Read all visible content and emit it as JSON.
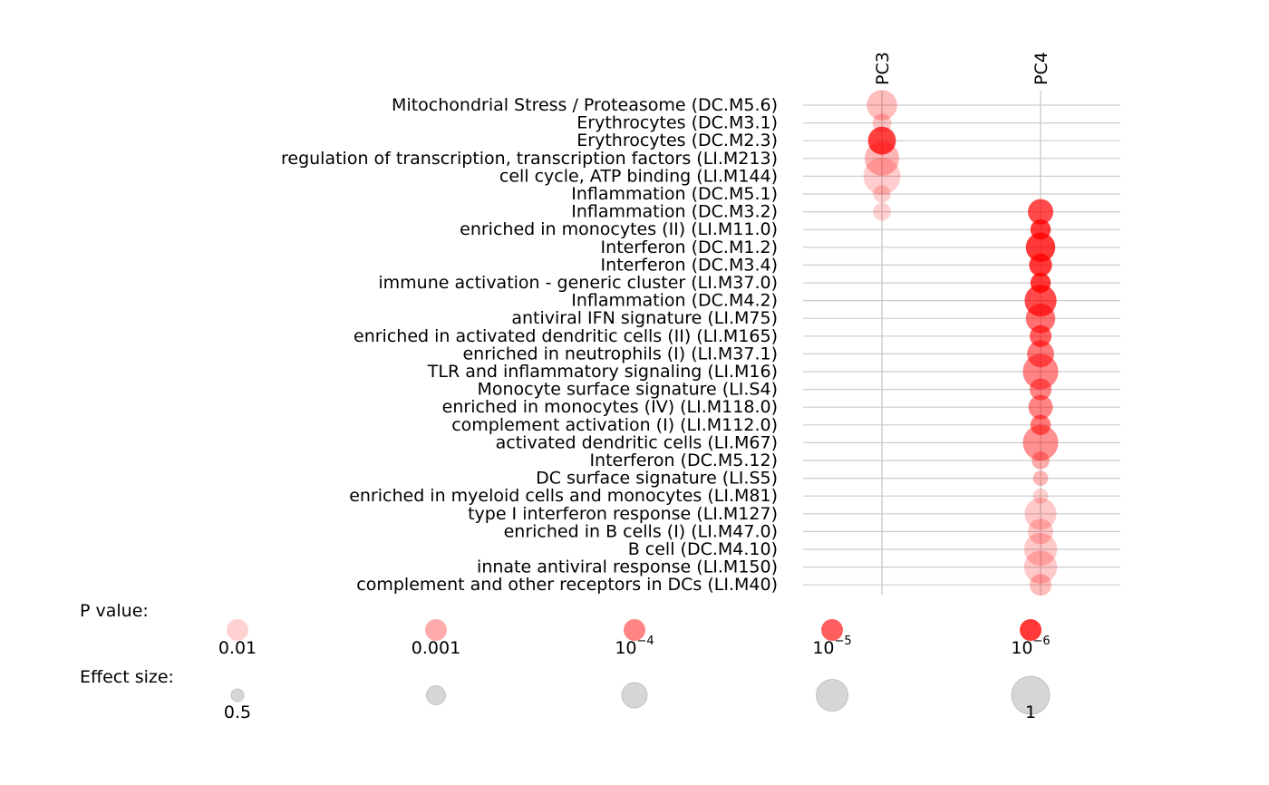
{
  "chart_data": {
    "type": "bubble",
    "columns": [
      "PC3",
      "PC4"
    ],
    "rows": [
      "Mitochondrial Stress / Proteasome (DC.M5.6)",
      "Erythrocytes (DC.M3.1)",
      "Erythrocytes (DC.M2.3)",
      "regulation of transcription, transcription factors (LI.M213)",
      "cell cycle, ATP binding (LI.M144)",
      "Inflammation (DC.M5.1)",
      "Inflammation (DC.M3.2)",
      "enriched in monocytes (II) (LI.M11.0)",
      "Interferon (DC.M1.2)",
      "Interferon (DC.M3.4)",
      "immune activation - generic cluster (LI.M37.0)",
      "Inflammation (DC.M4.2)",
      "antiviral IFN signature (LI.M75)",
      "enriched in activated dendritic cells (II) (LI.M165)",
      "enriched in neutrophils (I) (LI.M37.1)",
      "TLR and inflammatory signaling (LI.M16)",
      "Monocyte surface signature (LI.S4)",
      "enriched in monocytes (IV) (LI.M118.0)",
      "complement activation (I) (LI.M112.0)",
      "activated dendritic cells (LI.M67)",
      "Interferon (DC.M5.12)",
      "DC surface signature (LI.S5)",
      "enriched in myeloid cells and monocytes (LI.M81)",
      "type I interferon response (LI.M127)",
      "enriched in B cells (I) (LI.M47.0)",
      "B cell (DC.M4.10)",
      "innate antiviral response (LI.M150)",
      "complement and other receptors in DCs (LI.M40)"
    ],
    "points": [
      {
        "row": 0,
        "col": 0,
        "effect": 0.85,
        "log10p": -2.5
      },
      {
        "row": 1,
        "col": 0,
        "effect": 0.62,
        "log10p": -2.3
      },
      {
        "row": 2,
        "col": 0,
        "effect": 0.8,
        "log10p": -5.8
      },
      {
        "row": 3,
        "col": 0,
        "effect": 0.93,
        "log10p": -2.7
      },
      {
        "row": 4,
        "col": 0,
        "effect": 0.98,
        "log10p": -2.1
      },
      {
        "row": 5,
        "col": 0,
        "effect": 0.6,
        "log10p": -2.0
      },
      {
        "row": 6,
        "col": 0,
        "effect": 0.6,
        "log10p": -2.0
      },
      {
        "row": 6,
        "col": 1,
        "effect": 0.75,
        "log10p": -5.5
      },
      {
        "row": 7,
        "col": 1,
        "effect": 0.65,
        "log10p": -6.0
      },
      {
        "row": 8,
        "col": 1,
        "effect": 0.83,
        "log10p": -6.0
      },
      {
        "row": 9,
        "col": 1,
        "effect": 0.7,
        "log10p": -6.0
      },
      {
        "row": 10,
        "col": 1,
        "effect": 0.65,
        "log10p": -6.0
      },
      {
        "row": 11,
        "col": 1,
        "effect": 0.88,
        "log10p": -5.5
      },
      {
        "row": 12,
        "col": 1,
        "effect": 0.83,
        "log10p": -4.5
      },
      {
        "row": 13,
        "col": 1,
        "effect": 0.68,
        "log10p": -5.0
      },
      {
        "row": 14,
        "col": 1,
        "effect": 0.78,
        "log10p": -4.3
      },
      {
        "row": 15,
        "col": 1,
        "effect": 0.95,
        "log10p": -4.0
      },
      {
        "row": 16,
        "col": 1,
        "effect": 0.68,
        "log10p": -4.0
      },
      {
        "row": 17,
        "col": 1,
        "effect": 0.73,
        "log10p": -4.0
      },
      {
        "row": 18,
        "col": 1,
        "effect": 0.65,
        "log10p": -4.3
      },
      {
        "row": 19,
        "col": 1,
        "effect": 0.95,
        "log10p": -3.7
      },
      {
        "row": 20,
        "col": 1,
        "effect": 0.6,
        "log10p": -3.0
      },
      {
        "row": 21,
        "col": 1,
        "effect": 0.55,
        "log10p": -2.7
      },
      {
        "row": 22,
        "col": 1,
        "effect": 0.55,
        "log10p": -2.0
      },
      {
        "row": 23,
        "col": 1,
        "effect": 0.88,
        "log10p": -2.2
      },
      {
        "row": 24,
        "col": 1,
        "effect": 0.75,
        "log10p": -2.2
      },
      {
        "row": 25,
        "col": 1,
        "effect": 0.9,
        "log10p": -2.2
      },
      {
        "row": 26,
        "col": 1,
        "effect": 0.9,
        "log10p": -2.2
      },
      {
        "row": 27,
        "col": 1,
        "effect": 0.68,
        "log10p": -2.5
      }
    ],
    "legend_p": {
      "title": "P value:",
      "items": [
        {
          "base": "0.01",
          "exp": "",
          "log10p": -2
        },
        {
          "base": "0.001",
          "exp": "",
          "log10p": -3
        },
        {
          "base": "10",
          "exp": "−4",
          "log10p": -4
        },
        {
          "base": "10",
          "exp": "−5",
          "log10p": -5
        },
        {
          "base": "10",
          "exp": "−6",
          "log10p": -6
        }
      ]
    },
    "legend_effect": {
      "title": "Effect size:",
      "items": [
        {
          "label": "0.5",
          "effect": 0.5
        },
        {
          "label": "",
          "effect": 0.625
        },
        {
          "label": "",
          "effect": 0.75
        },
        {
          "label": "",
          "effect": 0.875
        },
        {
          "label": "1",
          "effect": 1.0
        }
      ]
    },
    "colors": {
      "point": "#ff0000",
      "legend_effect": "#999999",
      "gridline": "#cccccc",
      "column_line": "#999999"
    }
  }
}
